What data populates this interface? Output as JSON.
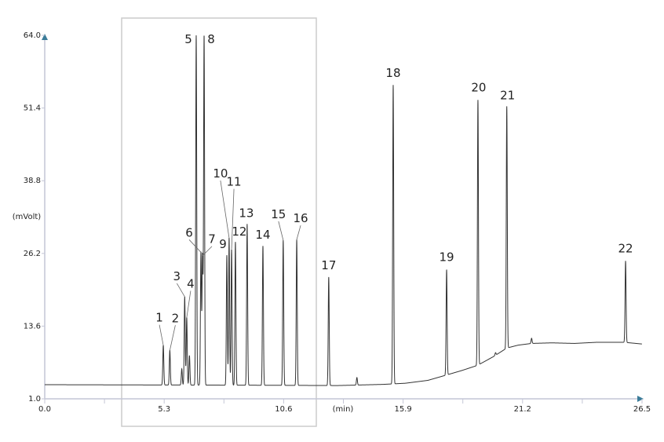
{
  "chart_data": {
    "type": "line",
    "title": "",
    "xlabel": "(min)",
    "ylabel": "(mVolt)",
    "xlim": [
      0.0,
      26.5
    ],
    "ylim": [
      1.0,
      64.0
    ],
    "x_ticks": [
      "0.0",
      "5.3",
      "10.6",
      "15.9",
      "21.2",
      "26.5"
    ],
    "y_ticks": [
      "1.0",
      "13.6",
      "26.2",
      "38.8",
      "51.4",
      "64.0"
    ],
    "grid": false,
    "legend": "none",
    "colors": {
      "trace": "#333333",
      "axis": "#c4c6d6",
      "arrow": "#3b7c99",
      "selection_box": "#cccccc"
    },
    "selection_box_x_range": [
      3.4,
      12.0
    ],
    "baseline": [
      [
        0,
        3.45
      ],
      [
        5,
        3.4
      ],
      [
        10,
        3.35
      ],
      [
        13,
        3.3
      ],
      [
        15,
        3.5
      ],
      [
        16,
        3.7
      ],
      [
        17,
        4.2
      ],
      [
        17.8,
        5.1
      ],
      [
        18.5,
        5.9
      ],
      [
        19.2,
        6.8
      ],
      [
        19.9,
        8.3
      ],
      [
        20.5,
        9.8
      ],
      [
        21.0,
        10.3
      ],
      [
        21.6,
        10.6
      ],
      [
        22.5,
        10.7
      ],
      [
        23.5,
        10.6
      ],
      [
        24.5,
        10.8
      ],
      [
        25.7,
        10.8
      ],
      [
        26.5,
        10.5
      ]
    ],
    "peaks": [
      {
        "label": "1",
        "time": 5.26,
        "height": 10.3
      },
      {
        "label": "2",
        "time": 5.55,
        "height": 9.4
      },
      {
        "label": "",
        "time": 6.08,
        "height": 6.2
      },
      {
        "label": "3",
        "time": 6.21,
        "height": 18.7
      },
      {
        "label": "4",
        "time": 6.3,
        "height": 15.1
      },
      {
        "label": "",
        "time": 6.42,
        "height": 8.5
      },
      {
        "label": "5",
        "time": 6.72,
        "height": 64.0
      },
      {
        "label": "6",
        "time": 6.93,
        "height": 26.4
      },
      {
        "label": "7",
        "time": 7.0,
        "height": 25.8
      },
      {
        "label": "8",
        "time": 7.07,
        "height": 64.0
      },
      {
        "label": "9",
        "time": 8.08,
        "height": 25.9
      },
      {
        "label": "10",
        "time": 8.18,
        "height": 28.9
      },
      {
        "label": "11",
        "time": 8.29,
        "height": 26.9
      },
      {
        "label": "12",
        "time": 8.46,
        "height": 28.2
      },
      {
        "label": "13",
        "time": 8.98,
        "height": 31.3
      },
      {
        "label": "14",
        "time": 9.68,
        "height": 27.5
      },
      {
        "label": "15",
        "time": 10.58,
        "height": 28.5
      },
      {
        "label": "16",
        "time": 11.18,
        "height": 28.6
      },
      {
        "label": "17",
        "time": 12.6,
        "height": 22.1
      },
      {
        "label": "",
        "time": 13.85,
        "height": 4.7
      },
      {
        "label": "18",
        "time": 15.46,
        "height": 55.4
      },
      {
        "label": "19",
        "time": 17.83,
        "height": 23.4
      },
      {
        "label": "20",
        "time": 19.22,
        "height": 52.8
      },
      {
        "label": "",
        "time": 20.0,
        "height": 9.0
      },
      {
        "label": "21",
        "time": 20.5,
        "height": 51.7
      },
      {
        "label": "",
        "time": 21.6,
        "height": 11.5
      },
      {
        "label": "22",
        "time": 25.77,
        "height": 24.9
      }
    ]
  }
}
